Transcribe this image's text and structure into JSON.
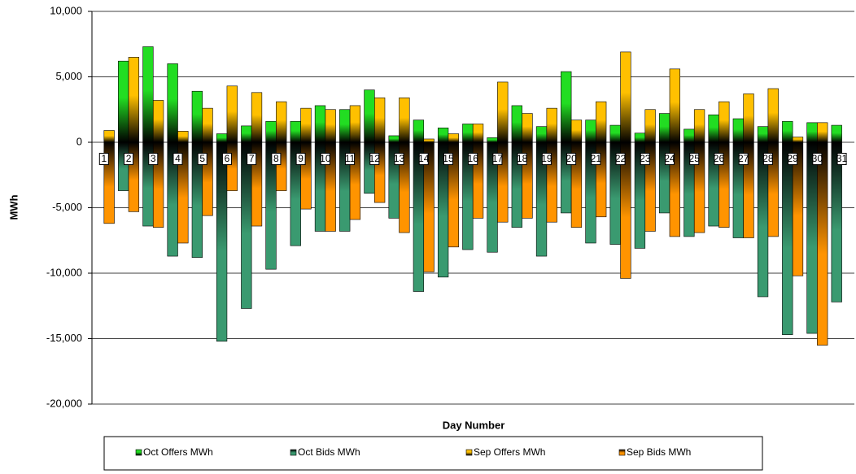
{
  "chart_data": {
    "type": "bar",
    "x_label": "Day Number",
    "y_label": "MWh",
    "categories": [
      "1",
      "2",
      "3",
      "4",
      "5",
      "6",
      "7",
      "8",
      "9",
      "10",
      "11",
      "12",
      "13",
      "14",
      "15",
      "16",
      "17",
      "18",
      "19",
      "20",
      "21",
      "22",
      "23",
      "24",
      "25",
      "26",
      "27",
      "28",
      "29",
      "30",
      "31"
    ],
    "series": [
      {
        "name": "Oct Offers MWh",
        "color": "#22dd22",
        "values": [
          null,
          6200,
          7300,
          6000,
          3900,
          650,
          1250,
          1600,
          1600,
          2800,
          2500,
          4000,
          500,
          1700,
          1100,
          1400,
          350,
          2800,
          1200,
          5400,
          1700,
          1300,
          700,
          2200,
          1000,
          2100,
          1800,
          1200,
          1600,
          1500,
          1300
        ]
      },
      {
        "name": "Oct Bids MWh",
        "color": "#3a9a70",
        "values": [
          null,
          -3700,
          -6400,
          -8700,
          -8800,
          -15200,
          -12700,
          -9700,
          -7900,
          -6800,
          -6800,
          -3900,
          -5800,
          -11400,
          -10300,
          -8200,
          -8400,
          -6500,
          -8700,
          -5400,
          -7700,
          -7800,
          -8100,
          -5400,
          -7200,
          -6400,
          -7300,
          -11800,
          -14700,
          -14600,
          -12200
        ]
      },
      {
        "name": "Sep Offers MWh",
        "color": "#ffc000",
        "values": [
          900,
          6500,
          3200,
          850,
          2600,
          4300,
          3800,
          3100,
          2600,
          2500,
          2800,
          3400,
          3400,
          250,
          650,
          1400,
          4600,
          2200,
          2600,
          1700,
          3100,
          6900,
          2500,
          5600,
          2500,
          3100,
          3700,
          4100,
          400,
          1500,
          null
        ]
      },
      {
        "name": "Sep Bids MWh",
        "color": "#ff9400",
        "values": [
          -6200,
          -5300,
          -6500,
          -7700,
          -5600,
          -3700,
          -6400,
          -3700,
          -5100,
          -6800,
          -5900,
          -4600,
          -6900,
          -9900,
          -8000,
          -5800,
          -6100,
          -5800,
          -6100,
          -6500,
          -5700,
          -10400,
          -6800,
          -7200,
          -6900,
          -6500,
          -7300,
          -7200,
          -10200,
          -15500,
          null
        ]
      }
    ],
    "ylim": [
      -20000,
      10000
    ],
    "yticks": [
      {
        "value": -20000,
        "label": "-20,000"
      },
      {
        "value": -15000,
        "label": "-15,000"
      },
      {
        "value": -10000,
        "label": "-10,000"
      },
      {
        "value": -5000,
        "label": "-5,000"
      },
      0,
      {
        "value": 5000,
        "label": "5,000"
      },
      {
        "value": 10000,
        "label": "10,000"
      }
    ],
    "grid": true,
    "legend": "bottom"
  }
}
